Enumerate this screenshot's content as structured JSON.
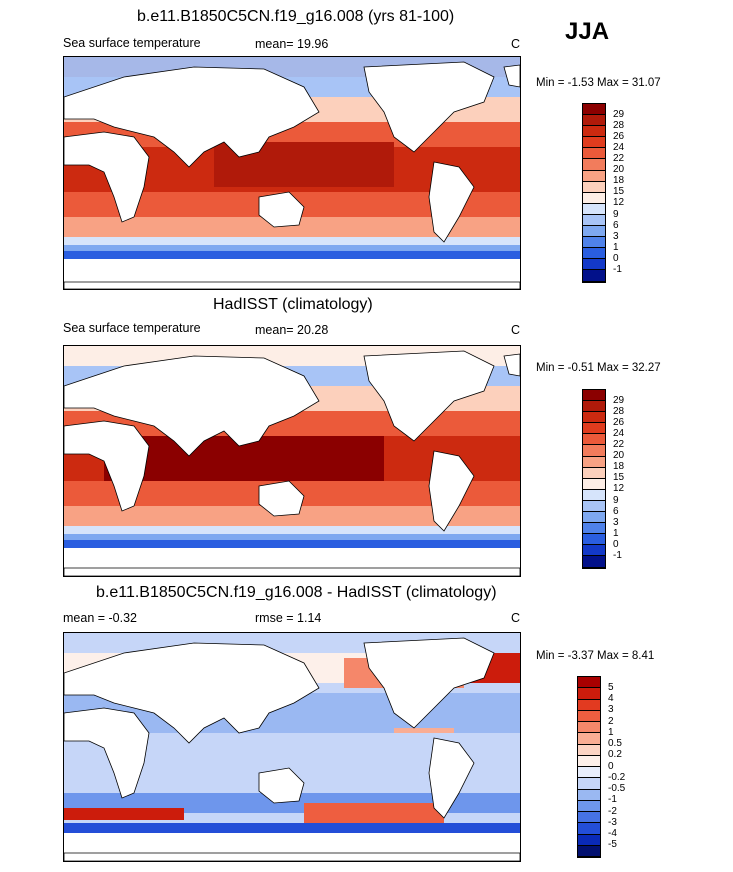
{
  "season": "JJA",
  "panels": [
    {
      "title": "b.e11.B1850C5CN.f19_g16.008 (yrs 81-100)",
      "left_label": "Sea surface temperature",
      "mean_label": "mean=  19.96",
      "units": "C",
      "minmax": "Min =  -1.53 Max =  31.07",
      "levels": [
        "29",
        "28",
        "26",
        "24",
        "22",
        "20",
        "18",
        "15",
        "12",
        "9",
        "6",
        "3",
        "1",
        "0",
        "-1"
      ],
      "colors": [
        "#8b0000",
        "#b01a0a",
        "#cc2a10",
        "#e03c1e",
        "#eb5a3a",
        "#f27c5c",
        "#f8a284",
        "#fcd0bc",
        "#fdeee6",
        "#d6e4fb",
        "#a8c4f6",
        "#7ea8f0",
        "#4f82ea",
        "#2a5ee0",
        "#1339c8",
        "#02118a"
      ]
    },
    {
      "title": "HadISST (climatology)",
      "left_label": "Sea surface temperature",
      "mean_label": "mean=  20.28",
      "units": "C",
      "minmax": "Min =  -0.51 Max =  32.27",
      "levels": [
        "29",
        "28",
        "26",
        "24",
        "22",
        "20",
        "18",
        "15",
        "12",
        "9",
        "6",
        "3",
        "1",
        "0",
        "-1"
      ],
      "colors": [
        "#8b0000",
        "#b01a0a",
        "#cc2a10",
        "#e03c1e",
        "#eb5a3a",
        "#f27c5c",
        "#f8a284",
        "#fcd0bc",
        "#fdeee6",
        "#d6e4fb",
        "#a8c4f6",
        "#7ea8f0",
        "#4f82ea",
        "#2a5ee0",
        "#1339c8",
        "#02118a"
      ]
    },
    {
      "title": "b.e11.B1850C5CN.f19_g16.008 - HadISST (climatology)",
      "left_label": "mean =  -0.32",
      "mean_label": "rmse =  1.14",
      "units": "C",
      "minmax": "Min =  -3.37 Max =   8.41",
      "levels": [
        "5",
        "4",
        "3",
        "2",
        "1",
        "0.5",
        "0.2",
        "0",
        "-0.2",
        "-0.5",
        "-1",
        "-2",
        "-3",
        "-4",
        "-5"
      ],
      "colors": [
        "#a80000",
        "#cc1c0c",
        "#e23a20",
        "#ee5e40",
        "#f5876a",
        "#f9ad94",
        "#fcd4c4",
        "#fdf0ea",
        "#e8eefc",
        "#c6d6f8",
        "#9ab8f2",
        "#6e96ec",
        "#4672e4",
        "#234ed8",
        "#0a2ab8",
        "#021070"
      ]
    }
  ]
}
